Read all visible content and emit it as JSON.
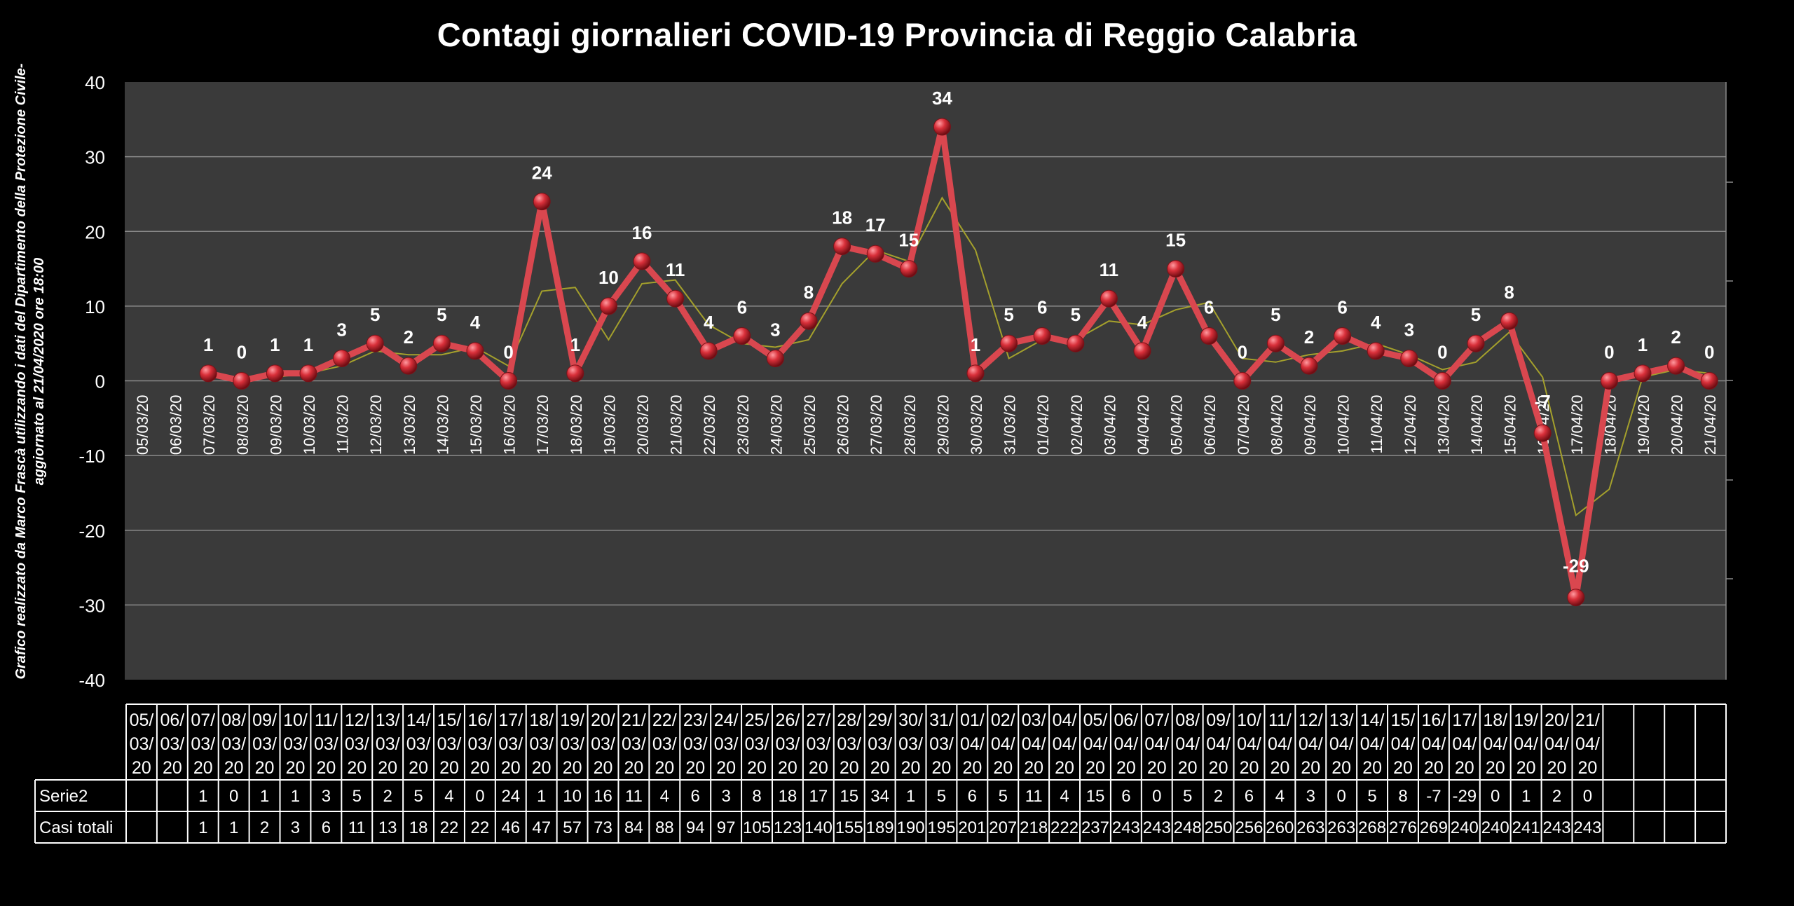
{
  "chart_data": {
    "type": "line",
    "title": "Contagi  giornalieri COVID-19 Provincia di Reggio Calabria",
    "side_note": "Grafico  realizzato da Marco Frascà  utilizzando i dati del Dipartimento  della Protezione Civile-\naggiornato al  21/04/2020 ore 18:00",
    "categories": [
      "05/03/20",
      "06/03/20",
      "07/03/20",
      "08/03/20",
      "09/03/20",
      "10/03/20",
      "11/03/20",
      "12/03/20",
      "13/03/20",
      "14/03/20",
      "15/03/20",
      "16/03/20",
      "17/03/20",
      "18/03/20",
      "19/03/20",
      "20/03/20",
      "21/03/20",
      "22/03/20",
      "23/03/20",
      "24/03/20",
      "25/03/20",
      "26/03/20",
      "27/03/20",
      "28/03/20",
      "29/03/20",
      "30/03/20",
      "31/03/20",
      "01/04/20",
      "02/04/20",
      "03/04/20",
      "04/04/20",
      "05/04/20",
      "06/04/20",
      "07/04/20",
      "08/04/20",
      "09/04/20",
      "10/04/20",
      "11/04/20",
      "12/04/20",
      "13/04/20",
      "14/04/20",
      "15/04/20",
      "16/04/20",
      "17/04/20",
      "18/04/20",
      "19/04/20",
      "20/04/20",
      "21/04/20"
    ],
    "plot_x_labels": [
      "05/03/20",
      "06/03/20",
      "07/03/20",
      "08/03/20",
      "09/03/20",
      "10/03/20",
      "11/03/20",
      "12/03/20",
      "13/03/20",
      "14/03/20",
      "15/03/20",
      "16/03/20",
      "17/03/20",
      "18/03/20",
      "19/03/20",
      "20/03/20",
      "21/03/20",
      "22/03/20",
      "23/03/20",
      "24/03/20",
      "25/03/20",
      "26/03/20",
      "27/03/20",
      "28/03/20",
      "29/03/20",
      "30/03/20",
      "31/03/20",
      "01/04/20",
      "02/04/20",
      "03/04/20",
      "04/04/20",
      "05/04/20",
      "06/04/20",
      "07/04/20",
      "08/04/20",
      "09/04/20",
      "10/04/20",
      "11/04/20",
      "12/04/20",
      "13/04/20",
      "14/04/20",
      "15/04/20",
      "16/04/20",
      "17/04/20",
      "18/04/20",
      "19/04/20",
      "20/04/20",
      "21/04/20"
    ],
    "table_x_labels": [
      "05/03/20",
      "06/03/20",
      "07/03/20",
      "08/03/20",
      "09/03/20",
      "10/03/20",
      "11/03/20",
      "12/03/20",
      "13/03/20",
      "14/03/20",
      "15/03/20",
      "16/03/20",
      "17/03/20",
      "18/03/20",
      "19/03/20",
      "20/03/20",
      "21/03/20",
      "22/03/20",
      "23/03/20",
      "24/03/20",
      "25/03/20",
      "26/03/20",
      "27/03/20",
      "28/03/20",
      "29/03/20",
      "30/03/20",
      "31/03/20",
      "01/04/20",
      "02/04/20",
      "03/04/20",
      "04/04/20",
      "05/04/20",
      "06/04/20",
      "07/04/20",
      "08/04/20",
      "09/04/20",
      "10/04/20",
      "11/04/20",
      "12/04/20",
      "13/04/20",
      "14/04/20",
      "15/04/20",
      "16/04/20",
      "17/04/20",
      "18/04/20",
      "19/04/20",
      "20/04/20",
      "21/04/20",
      "",
      "",
      "",
      ""
    ],
    "series": [
      {
        "name": "Serie2",
        "values": [
          null,
          null,
          1,
          0,
          1,
          1,
          3,
          5,
          2,
          5,
          4,
          0,
          24,
          1,
          10,
          16,
          11,
          4,
          6,
          3,
          8,
          18,
          17,
          15,
          34,
          1,
          5,
          6,
          5,
          11,
          4,
          15,
          6,
          0,
          5,
          2,
          6,
          4,
          3,
          0,
          5,
          8,
          -7,
          -29,
          0,
          1,
          2,
          0
        ]
      }
    ],
    "table_rows": [
      {
        "name": "Serie2",
        "values": [
          "",
          "",
          "1",
          "0",
          "1",
          "1",
          "3",
          "5",
          "2",
          "5",
          "4",
          "0",
          "24",
          "1",
          "10",
          "16",
          "11",
          "4",
          "6",
          "3",
          "8",
          "18",
          "17",
          "15",
          "34",
          "1",
          "5",
          "6",
          "5",
          "11",
          "4",
          "15",
          "6",
          "0",
          "5",
          "2",
          "6",
          "4",
          "3",
          "0",
          "5",
          "8",
          "-7",
          "-29",
          "0",
          "1",
          "2",
          "0",
          "",
          "",
          "",
          ""
        ]
      },
      {
        "name": "Casi totali",
        "values": [
          "",
          "",
          "1",
          "1",
          "2",
          "3",
          "6",
          "11",
          "13",
          "18",
          "22",
          "22",
          "46",
          "47",
          "57",
          "73",
          "84",
          "88",
          "94",
          "97",
          "105",
          "123",
          "140",
          "155",
          "189",
          "190",
          "195",
          "201",
          "207",
          "218",
          "222",
          "237",
          "243",
          "243",
          "248",
          "250",
          "256",
          "260",
          "263",
          "263",
          "268",
          "276",
          "269",
          "240",
          "240",
          "241",
          "243",
          "243",
          "",
          "",
          "",
          ""
        ]
      }
    ],
    "ylim": [
      -40,
      40
    ],
    "yticks": [
      40,
      30,
      20,
      10,
      0,
      -10,
      -20,
      -30,
      -40
    ],
    "grid": true,
    "colors": {
      "line": "#d9474f",
      "marker": "#c0262f",
      "trend": "#a4a02c",
      "plot_bg": "#3a3a3a",
      "grid": "#8a8a8a"
    }
  }
}
